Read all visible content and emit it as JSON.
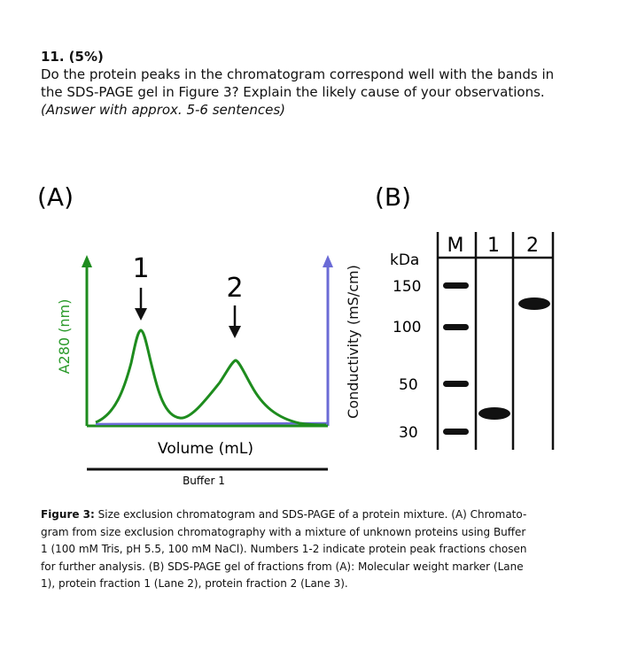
{
  "question": {
    "number": "11.",
    "points": "(5%)",
    "text_line1": "Do the protein peaks in the chromatogram correspond well with the bands in",
    "text_line2": "the SDS-PAGE gel in Figure 3? Explain the likely cause of your observations.",
    "note": "(Answer with approx. 5-6 sentences)"
  },
  "panel_a": {
    "label": "(A)",
    "y_axis_left": "A280 (nm)",
    "y_axis_right": "Conductivity (mS/cm)",
    "x_axis": "Volume (mL)",
    "buffer_label": "Buffer 1",
    "peak_labels": [
      "1",
      "2"
    ],
    "colors": {
      "absorbance": "#1e8c1e",
      "conductivity": "#6b6bd6",
      "axis_label_green": "#2a9a2a"
    }
  },
  "panel_b": {
    "label": "(B)",
    "unit": "kDa",
    "lanes": [
      "M",
      "1",
      "2"
    ],
    "markers_kda": [
      "150",
      "100",
      "50",
      "30"
    ],
    "bands": [
      {
        "lane": "M",
        "kda": 150
      },
      {
        "lane": "M",
        "kda": 100
      },
      {
        "lane": "M",
        "kda": 50
      },
      {
        "lane": "M",
        "kda": 30
      },
      {
        "lane": "1",
        "kda": 35
      },
      {
        "lane": "2",
        "kda": 125
      }
    ]
  },
  "caption": {
    "label": "Figure 3:",
    "line1": "Size exclusion chromatogram and SDS-PAGE of a protein mixture. (A) Chromato-",
    "line2": "gram from size exclusion chromatography with a mixture of unknown proteins using Buffer",
    "line3": "1 (100 mM Tris, pH 5.5, 100 mM NaCl). Numbers 1-2 indicate protein peak fractions chosen",
    "line4": "for further analysis. (B) SDS-PAGE gel of fractions from (A): Molecular weight marker (Lane",
    "line5": "1), protein fraction 1 (Lane 2), protein fraction 2 (Lane 3)."
  }
}
